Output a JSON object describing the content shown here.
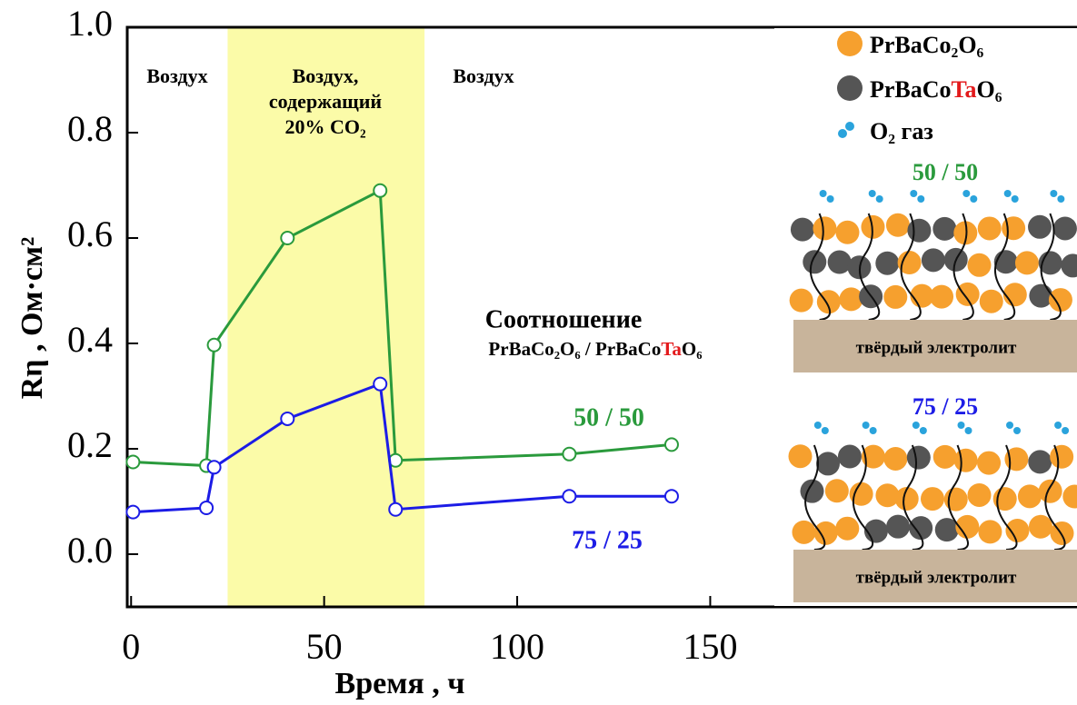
{
  "chart_data": {
    "type": "line",
    "xlabel": "Время , ч",
    "ylabel": "Rη , Ом·см²",
    "x": [
      0.5,
      19.5,
      21.5,
      40.5,
      64.5,
      68.5,
      113.5,
      140
    ],
    "series": [
      {
        "name": "50 / 50",
        "color": "#2a9a3c",
        "values": [
          0.175,
          0.168,
          0.397,
          0.6,
          0.69,
          0.178,
          0.19,
          0.208
        ]
      },
      {
        "name": "75 / 25",
        "color": "#1c1ce6",
        "values": [
          0.08,
          0.088,
          0.165,
          0.257,
          0.323,
          0.085,
          0.11,
          0.11
        ]
      }
    ],
    "xlim": [
      -1,
      245
    ],
    "ylim": [
      -0.1,
      1.0
    ],
    "xticks": [
      0,
      50,
      100,
      150
    ],
    "yticks": [
      {
        "value": 0,
        "label": "0.0"
      },
      0.2,
      0.4,
      0.6,
      0.8,
      {
        "value": 1,
        "label": "1.0"
      }
    ],
    "shaded_region": {
      "x": [
        25,
        76
      ],
      "color": "#fbfba8"
    },
    "annotations": {
      "air_before": "Воздух",
      "co2": [
        "Воздух,",
        "содержащий",
        "20% CO₂"
      ],
      "air_after": "Воздух",
      "ratio_title": "Соотношение",
      "ratio_formula": [
        "PrBaCo₂O₆  / PrBaCo",
        "Ta",
        "O₆"
      ]
    },
    "inset": {
      "legend": [
        {
          "label": [
            "PrBaCo₂O₆"
          ],
          "color": "#f6a02e"
        },
        {
          "label": [
            "PrBaCo",
            "Ta",
            "O₆"
          ],
          "color": "#555555"
        },
        {
          "label": [
            "O₂ газ"
          ],
          "color": "#2aa3dc"
        }
      ],
      "panels": [
        {
          "title": "50 / 50",
          "electrolyte": "твёрдый электролит"
        },
        {
          "title": "75 / 25",
          "electrolyte": "твёрдый электролит"
        }
      ]
    }
  }
}
